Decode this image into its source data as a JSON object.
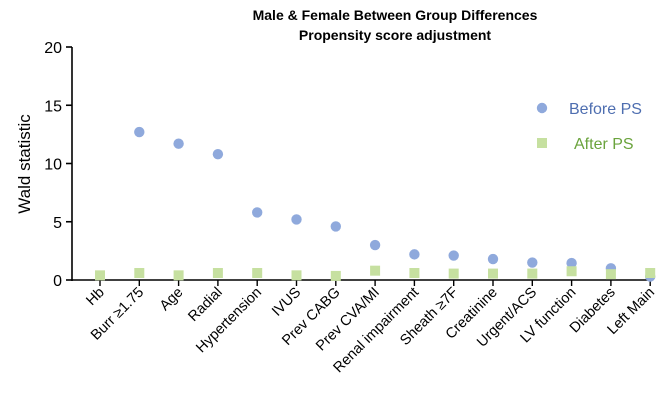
{
  "chart_data": {
    "type": "scatter",
    "title": "Male & Female Between Group Differences",
    "subtitle": "Propensity score adjustment",
    "xlabel": "",
    "ylabel": "Wald statistic",
    "ylim": [
      0,
      20
    ],
    "yticks": [
      "0",
      "5",
      "10",
      "15",
      "20"
    ],
    "grid": false,
    "legend_position": "right",
    "categories": [
      "Hb",
      "Burr ≥1.75",
      "Age",
      "Radial",
      "Hypertension",
      "IVUS",
      "Prev CABG",
      "Prev CVA/MI",
      "Renal impairment",
      "Sheath ≥7F",
      "Creatinine",
      "Urgent/ACS",
      "LV function",
      "Diabetes",
      "Left Main"
    ],
    "series": [
      {
        "name": "Before PS",
        "marker": "circle",
        "color": "#8fa9dc",
        "text_color": "#4e6eb0",
        "values": [
          null,
          12.7,
          11.7,
          10.8,
          5.8,
          5.2,
          4.6,
          3.0,
          2.2,
          2.1,
          1.8,
          1.5,
          1.45,
          1.0,
          0.3
        ]
      },
      {
        "name": "After PS",
        "marker": "square",
        "color": "#c6e0a0",
        "text_color": "#6aa33c",
        "values": [
          0.4,
          0.6,
          0.4,
          0.6,
          0.6,
          0.4,
          0.35,
          0.8,
          0.6,
          0.55,
          0.55,
          0.55,
          0.75,
          0.5,
          0.6
        ]
      }
    ]
  }
}
